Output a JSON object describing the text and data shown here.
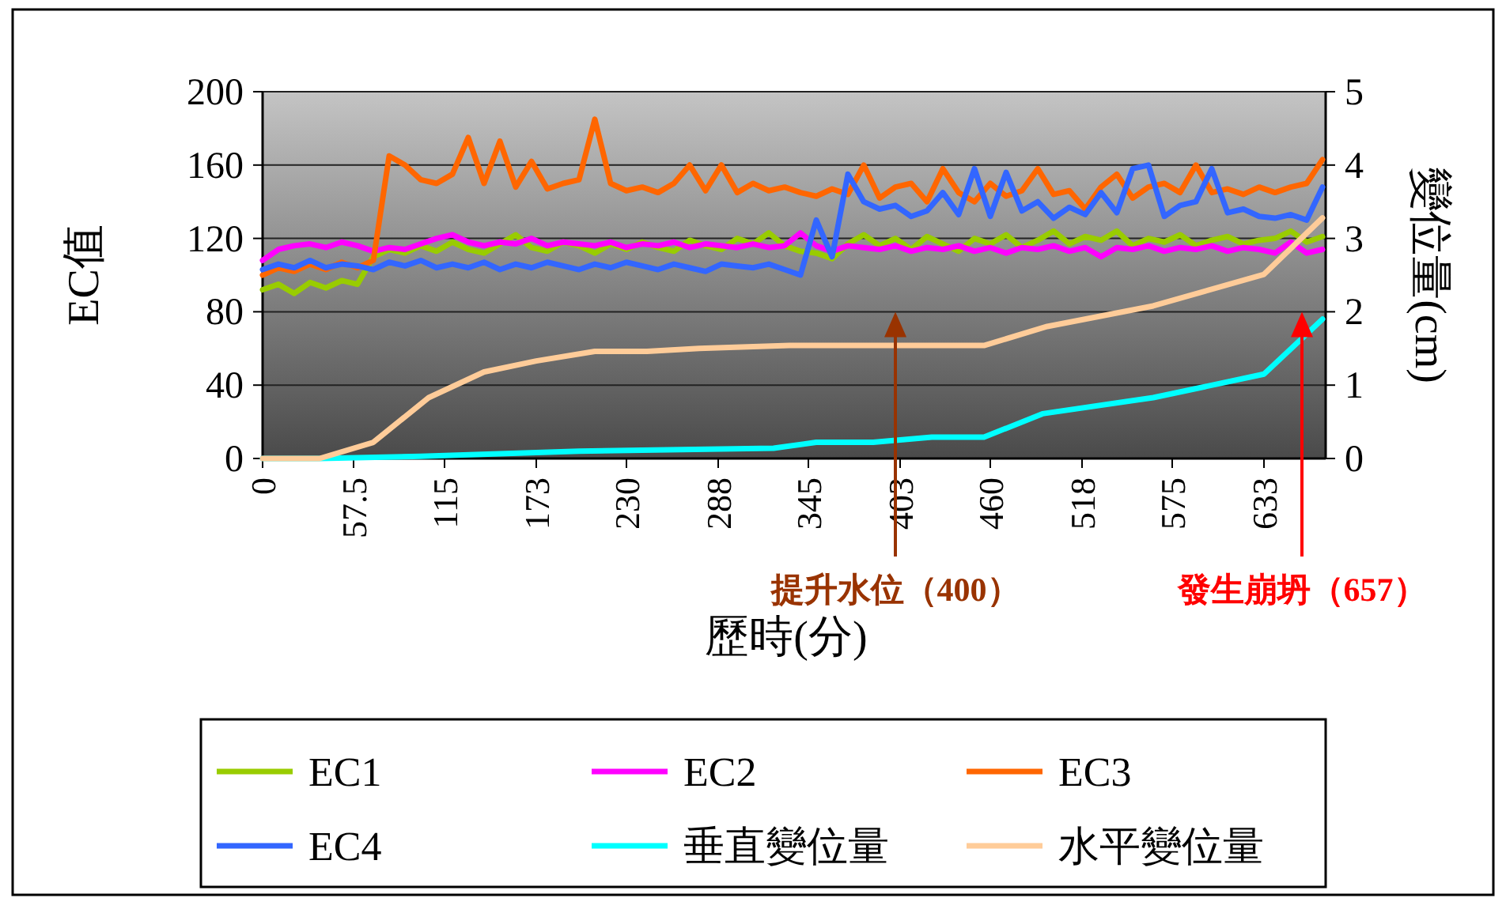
{
  "chart_data": {
    "type": "line",
    "xlabel": "歷時(分)",
    "ylabel": "EC值",
    "y2label": "變位量(cm)",
    "x": [
      0,
      10,
      20,
      30,
      40,
      50,
      60,
      70,
      80,
      90,
      100,
      110,
      120,
      130,
      140,
      150,
      160,
      170,
      180,
      190,
      200,
      210,
      220,
      230,
      240,
      250,
      260,
      270,
      280,
      290,
      300,
      310,
      320,
      330,
      340,
      350,
      360,
      370,
      380,
      390,
      400,
      410,
      420,
      430,
      440,
      450,
      460,
      470,
      480,
      490,
      500,
      510,
      520,
      530,
      540,
      550,
      560,
      570,
      580,
      590,
      600,
      610,
      620,
      630,
      640,
      650,
      660,
      670
    ],
    "xlim": [
      0,
      672
    ],
    "xticks": [
      0,
      57.5,
      115,
      173,
      230,
      288,
      345,
      403,
      460,
      518,
      575,
      633
    ],
    "ylim": [
      0,
      200
    ],
    "yticks": [
      0,
      40,
      80,
      120,
      160,
      200
    ],
    "y2lim": [
      0,
      5
    ],
    "y2ticks": [
      0,
      1,
      2,
      3,
      4,
      5
    ],
    "grid": "y",
    "legend": "bottom",
    "series": [
      {
        "name": "EC1",
        "color": "#99cc00",
        "values": [
          92,
          95,
          90,
          96,
          93,
          97,
          95,
          110,
          114,
          112,
          116,
          113,
          118,
          114,
          112,
          117,
          122,
          115,
          113,
          118,
          116,
          112,
          117,
          114,
          118,
          115,
          113,
          119,
          116,
          114,
          120,
          117,
          123,
          116,
          113,
          112,
          109,
          117,
          122,
          116,
          120,
          114,
          121,
          117,
          113,
          120,
          117,
          122,
          115,
          119,
          124,
          117,
          121,
          119,
          124,
          116,
          120,
          118,
          122,
          116,
          119,
          121,
          117,
          119,
          120,
          124,
          118,
          121
        ]
      },
      {
        "name": "EC2",
        "color": "#ff00ff",
        "values": [
          108,
          114,
          116,
          117,
          115,
          118,
          116,
          113,
          115,
          114,
          117,
          120,
          122,
          118,
          116,
          118,
          117,
          120,
          116,
          118,
          117,
          116,
          118,
          115,
          117,
          116,
          118,
          115,
          117,
          116,
          115,
          117,
          115,
          116,
          123,
          116,
          113,
          116,
          115,
          114,
          116,
          113,
          115,
          114,
          116,
          113,
          115,
          112,
          115,
          114,
          116,
          113,
          115,
          110,
          115,
          114,
          116,
          113,
          115,
          114,
          116,
          113,
          115,
          114,
          112,
          118,
          112,
          114
        ]
      },
      {
        "name": "EC3",
        "color": "#ff6600",
        "values": [
          100,
          104,
          102,
          106,
          103,
          107,
          104,
          108,
          165,
          160,
          152,
          150,
          155,
          175,
          150,
          173,
          148,
          162,
          147,
          150,
          152,
          185,
          150,
          146,
          148,
          145,
          150,
          160,
          146,
          160,
          145,
          150,
          146,
          148,
          145,
          143,
          147,
          144,
          160,
          142,
          148,
          150,
          140,
          158,
          145,
          140,
          150,
          143,
          146,
          158,
          144,
          146,
          136,
          148,
          155,
          142,
          148,
          150,
          145,
          160,
          145,
          147,
          144,
          148,
          145,
          148,
          150,
          163
        ]
      },
      {
        "name": "EC4",
        "color": "#3366ff",
        "values": [
          103,
          106,
          104,
          108,
          104,
          106,
          105,
          103,
          107,
          105,
          108,
          104,
          106,
          104,
          107,
          103,
          106,
          104,
          107,
          105,
          103,
          106,
          104,
          107,
          105,
          103,
          106,
          104,
          102,
          106,
          105,
          104,
          106,
          103,
          100,
          130,
          110,
          155,
          140,
          136,
          138,
          132,
          135,
          145,
          133,
          158,
          132,
          156,
          135,
          140,
          131,
          137,
          133,
          145,
          134,
          158,
          160,
          132,
          138,
          140,
          158,
          134,
          136,
          132,
          131,
          133,
          130,
          148
        ]
      },
      {
        "name": "垂直變位量",
        "color": "#00ffff",
        "axis": "y2",
        "x": [
          0,
          36,
          100,
          200,
          323,
          350,
          386,
          423,
          456,
          493,
          563,
          633,
          670
        ],
        "values": [
          0,
          0,
          0.03,
          0.1,
          0.14,
          0.22,
          0.22,
          0.29,
          0.29,
          0.61,
          0.83,
          1.15,
          1.9
        ]
      },
      {
        "name": "水平變位量",
        "color": "#ffcc99",
        "axis": "y2",
        "x": [
          0,
          36,
          70,
          105,
          140,
          173,
          210,
          243,
          276,
          333,
          356,
          456,
          496,
          563,
          633,
          670
        ],
        "values": [
          0,
          0,
          0.22,
          0.83,
          1.18,
          1.33,
          1.46,
          1.46,
          1.5,
          1.54,
          1.54,
          1.54,
          1.8,
          2.08,
          2.51,
          3.28
        ]
      }
    ],
    "ref_lines": [
      {
        "axis": "x",
        "value": 400,
        "label": "提升水位（400）",
        "color": "#993300"
      },
      {
        "axis": "x",
        "value": 657,
        "label": "發生崩坍（657）",
        "color": "#ff0000"
      }
    ]
  }
}
